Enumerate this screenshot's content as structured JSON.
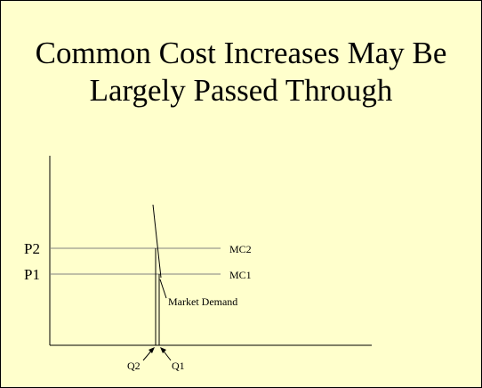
{
  "title": {
    "line1": "Common Cost Increases May Be",
    "line2": "Largely Passed Through"
  },
  "labels": {
    "p2": "P2",
    "p1": "P1",
    "mc2": "MC2",
    "mc1": "MC1",
    "demand": "Market Demand",
    "q2": "Q2",
    "q1": "Q1"
  },
  "colors": {
    "background": "#ffffcc",
    "mc_lines": "#808080",
    "axes": "#000000"
  }
}
